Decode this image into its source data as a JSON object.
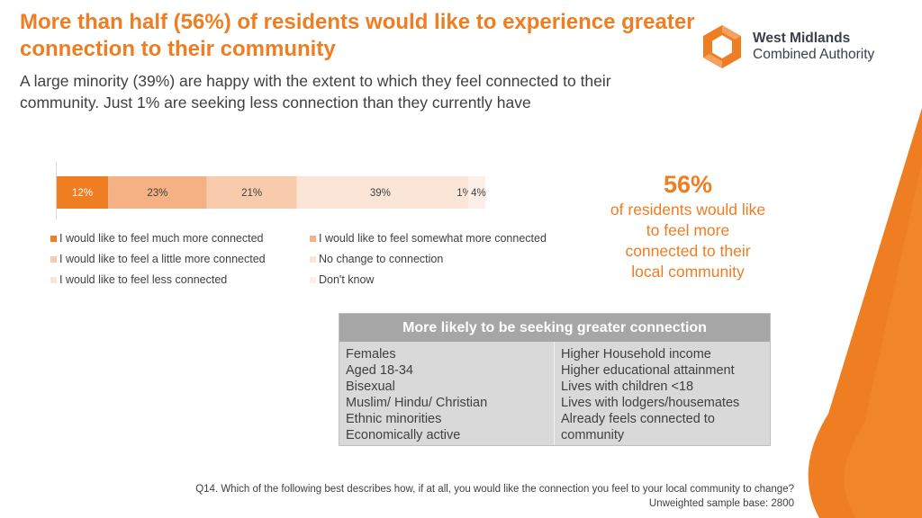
{
  "title": "More than half (56%) of residents would like to experience greater connection to their community",
  "subtitle": "A large minority (39%) are happy with the extent to which they feel connected to their community. Just 1% are seeking less connection than they currently have",
  "logo": {
    "line1": "West Midlands",
    "line2": "Combined Authority"
  },
  "colors": {
    "accent": "#ef7d22",
    "text": "#404040"
  },
  "chart_data": {
    "type": "bar",
    "orientation": "horizontal-stacked-100",
    "title": "",
    "series": [
      {
        "name": "I would like to feel much more connected",
        "value": 12,
        "label": "12%",
        "color": "#ef7d22",
        "label_color": "#ffffff"
      },
      {
        "name": "I would like to feel somewhat more connected",
        "value": 23,
        "label": "23%",
        "color": "#f4b183",
        "label_color": "#404040"
      },
      {
        "name": "I would like to feel a little more connected",
        "value": 21,
        "label": "21%",
        "color": "#f8cbad",
        "label_color": "#404040"
      },
      {
        "name": "No change to connection",
        "value": 39,
        "label": "39%",
        "color": "#fbe5d6",
        "label_color": "#404040"
      },
      {
        "name": "I would like to feel less connected",
        "value": 1,
        "label": "1%",
        "color": "#fbe5d6",
        "label_color": "#404040"
      },
      {
        "name": "Don't know",
        "value": 4,
        "label": "4%",
        "color": "#fcefe8",
        "label_color": "#404040"
      }
    ],
    "xlim": [
      0,
      100
    ],
    "legend_position": "bottom"
  },
  "big_stat": {
    "percent": "56%",
    "text": "of residents would like to feel more connected to their local community"
  },
  "table": {
    "header": "More likely to be seeking greater connection",
    "left": [
      "Females",
      "Aged 18-34",
      "Bisexual",
      "Muslim/ Hindu/ Christian",
      "Ethnic minorities",
      "Economically active"
    ],
    "right": [
      "Higher Household income",
      "Higher educational attainment",
      "Lives with children <18",
      "Lives with lodgers/housemates",
      "Already feels connected to",
      "community"
    ]
  },
  "footnote": {
    "question": "Q14. Which of the following best describes how, if at all, you would like the connection you feel to your local community to change?",
    "base": "Unweighted sample base: 2800"
  }
}
